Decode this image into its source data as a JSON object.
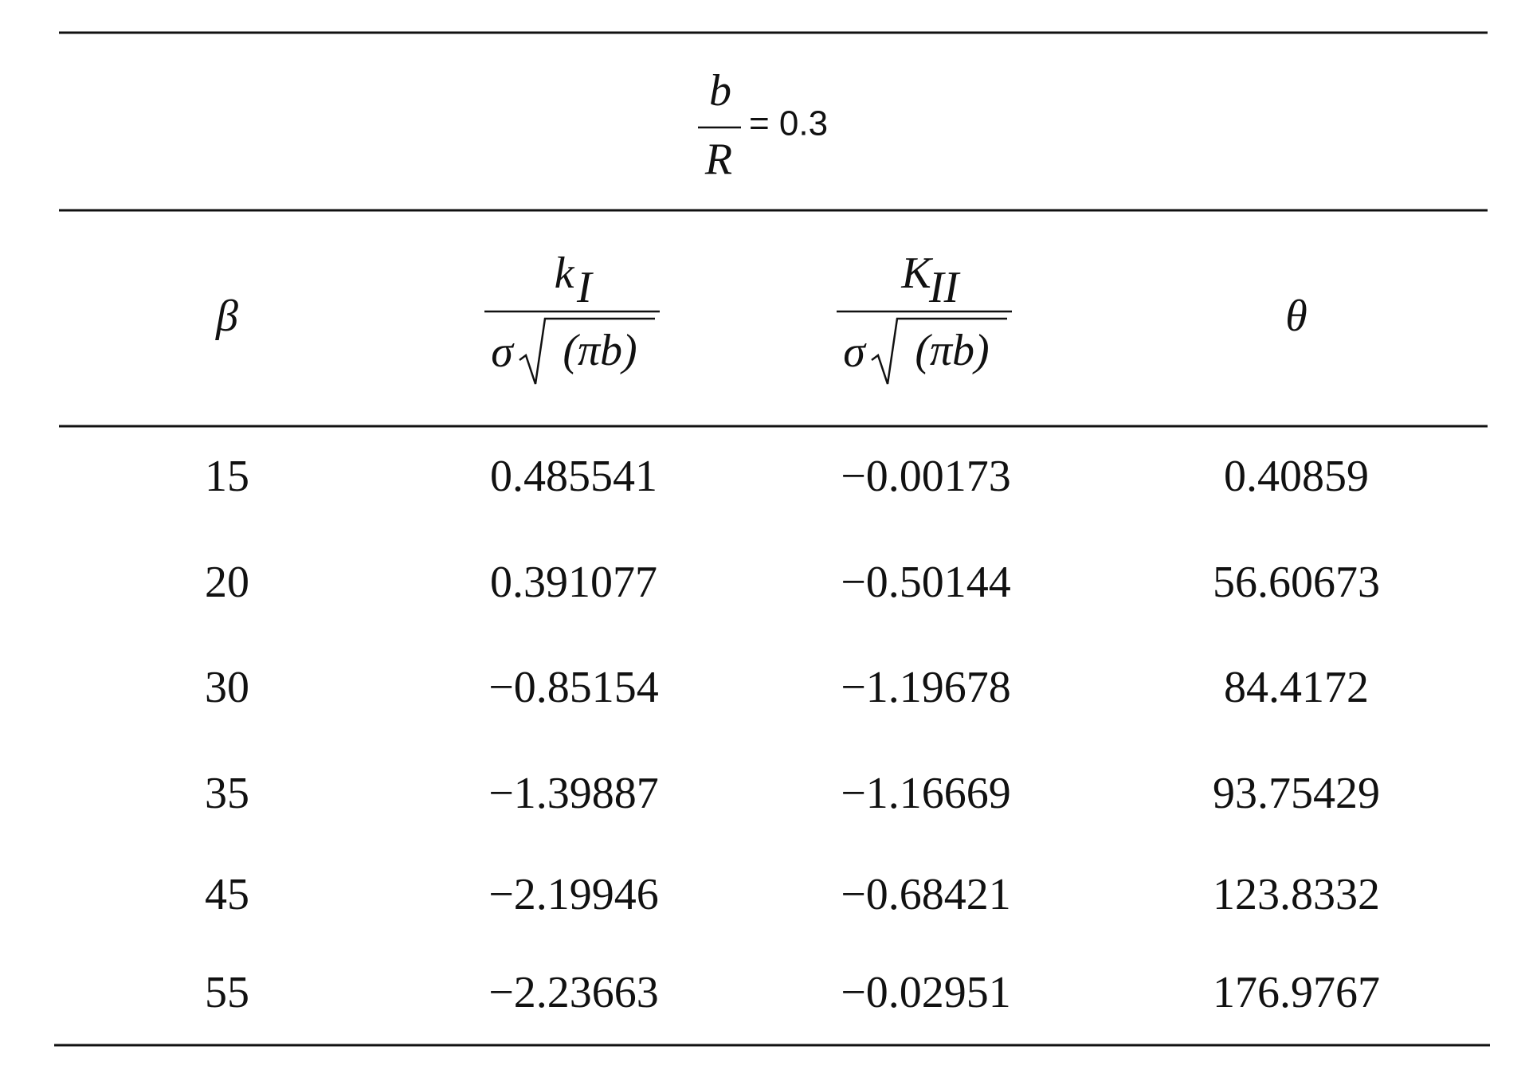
{
  "table": {
    "top_header": {
      "numerator": "b",
      "denominator": "R",
      "rhs": "= 0.3"
    },
    "columns": [
      {
        "label": "β"
      },
      {
        "numerator": "k",
        "numerator_subscript": "I",
        "denominator_factor": "σ",
        "denominator_radicand": "(πb)"
      },
      {
        "numerator": "K",
        "numerator_subscript": "II",
        "denominator_factor": "σ",
        "denominator_radicand": "(πb)"
      },
      {
        "label": "θ"
      }
    ],
    "rows": [
      [
        "15",
        "0.485541",
        "−0.00173",
        "0.40859"
      ],
      [
        "20",
        "0.391077",
        "−0.50144",
        "56.60673"
      ],
      [
        "30",
        "−0.85154",
        "−1.19678",
        "84.4172"
      ],
      [
        "35",
        "−1.39887",
        "−1.16669",
        "93.75429"
      ],
      [
        "45",
        "−2.19946",
        "−0.68421",
        "123.8332"
      ],
      [
        "55",
        "−2.23663",
        "−0.02951",
        "176.9767"
      ]
    ]
  }
}
